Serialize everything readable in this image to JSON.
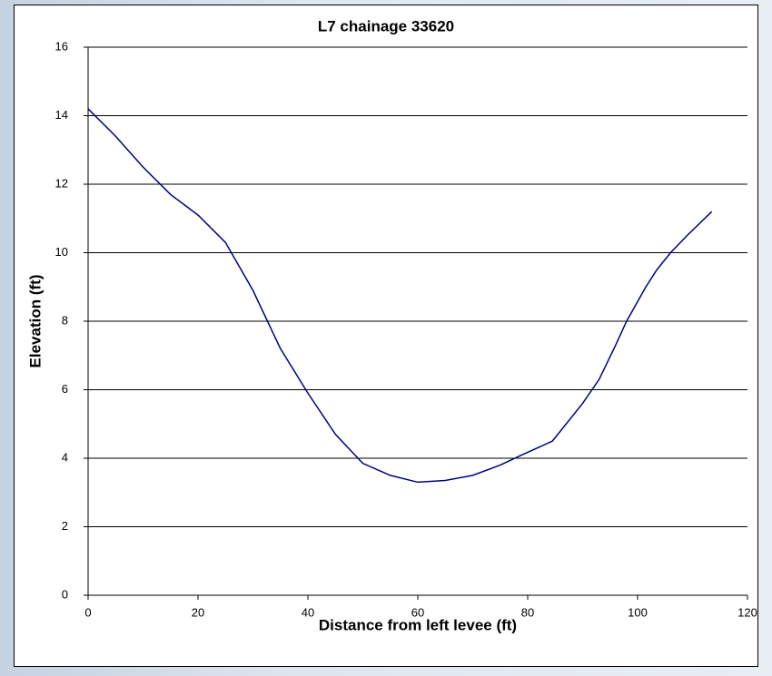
{
  "chart_data": {
    "type": "line",
    "title": "L7 chainage 33620",
    "x_label": "Distance from left levee (ft)",
    "y_label": "Elevation (ft)",
    "x": [
      0,
      5,
      10,
      15,
      20,
      25,
      30,
      35,
      40,
      45,
      50,
      55,
      60,
      65,
      70,
      75,
      79,
      84.5,
      90,
      93,
      96,
      98,
      101.5,
      103.5,
      106,
      109,
      113.5
    ],
    "series": [
      {
        "name": "Elevation",
        "color": "#000080",
        "values": [
          14.2,
          13.4,
          12.5,
          11.7,
          11.1,
          10.3,
          8.9,
          7.2,
          5.9,
          4.7,
          3.85,
          3.5,
          3.3,
          3.35,
          3.5,
          3.8,
          4.1,
          4.5,
          5.6,
          6.3,
          7.3,
          8.0,
          9.0,
          9.5,
          10.0,
          10.5,
          11.2
        ]
      }
    ],
    "xlim": [
      0,
      120
    ],
    "xticks": [
      0,
      20,
      40,
      60,
      80,
      100,
      120
    ],
    "ylim": [
      0,
      16
    ],
    "yticks": [
      0,
      2,
      4,
      6,
      8,
      10,
      12,
      14,
      16
    ],
    "grid": true
  }
}
